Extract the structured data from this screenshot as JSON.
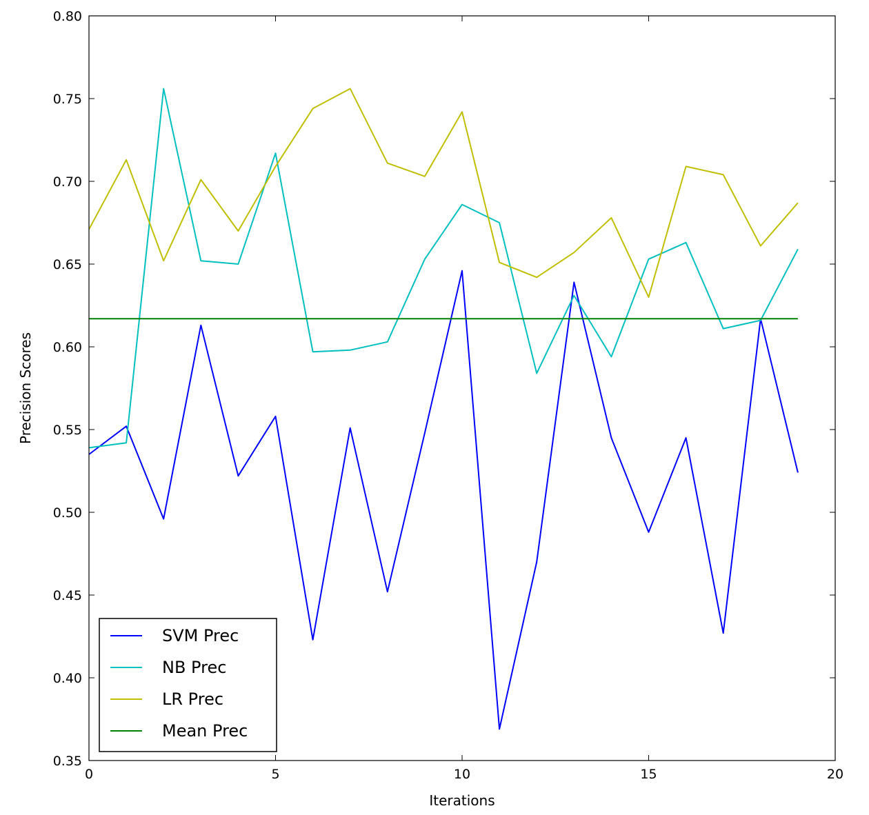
{
  "chart_data": {
    "type": "line",
    "title": "",
    "xlabel": "Iterations",
    "ylabel": "Precision Scores",
    "xlim": [
      0,
      20
    ],
    "ylim": [
      0.35,
      0.8
    ],
    "xticks": [
      0,
      5,
      10,
      15,
      20
    ],
    "xtick_labels": [
      "0",
      "5",
      "10",
      "15",
      "20"
    ],
    "yticks": [
      0.35,
      0.4,
      0.45,
      0.5,
      0.55,
      0.6,
      0.65,
      0.7,
      0.75,
      0.8
    ],
    "ytick_labels": [
      "0.35",
      "0.40",
      "0.45",
      "0.50",
      "0.55",
      "0.60",
      "0.65",
      "0.70",
      "0.75",
      "0.80"
    ],
    "grid": false,
    "legend_position": "lower-left",
    "x": [
      0,
      1,
      2,
      3,
      4,
      5,
      6,
      7,
      8,
      9,
      10,
      11,
      12,
      13,
      14,
      15,
      16,
      17,
      18,
      19
    ],
    "series": [
      {
        "name": "SVM Prec",
        "color": "#0000ff",
        "values": [
          0.535,
          0.552,
          0.496,
          0.613,
          0.522,
          0.558,
          0.423,
          0.551,
          0.452,
          0.548,
          0.646,
          0.369,
          0.47,
          0.639,
          0.545,
          0.488,
          0.545,
          0.427,
          0.617,
          0.524
        ]
      },
      {
        "name": "NB Prec",
        "color": "#00bfbf",
        "values": [
          0.539,
          0.542,
          0.756,
          0.652,
          0.65,
          0.717,
          0.597,
          0.598,
          0.603,
          0.653,
          0.686,
          0.675,
          0.584,
          0.631,
          0.594,
          0.653,
          0.663,
          0.611,
          0.616,
          0.659
        ]
      },
      {
        "name": "LR Prec",
        "color": "#bfbf00",
        "values": [
          0.671,
          0.713,
          0.652,
          0.701,
          0.67,
          0.709,
          0.744,
          0.756,
          0.711,
          0.703,
          0.742,
          0.651,
          0.642,
          0.657,
          0.678,
          0.63,
          0.709,
          0.704,
          0.661,
          0.687
        ]
      },
      {
        "name": "Mean Prec",
        "color": "#008000",
        "values": [
          0.617,
          0.617,
          0.617,
          0.617,
          0.617,
          0.617,
          0.617,
          0.617,
          0.617,
          0.617,
          0.617,
          0.617,
          0.617,
          0.617,
          0.617,
          0.617,
          0.617,
          0.617,
          0.617,
          0.617
        ]
      }
    ]
  }
}
